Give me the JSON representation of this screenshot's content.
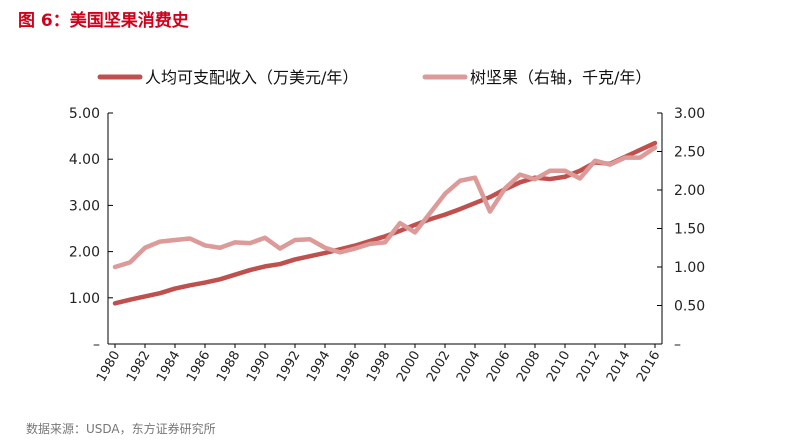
{
  "title": "图 6：美国坚果消费史",
  "source": "数据来源：USDA，东方证券研究所",
  "chart_data": {
    "type": "line",
    "title": "图 6：美国坚果消费史",
    "x": [
      1980,
      1981,
      1982,
      1983,
      1984,
      1985,
      1986,
      1987,
      1988,
      1989,
      1990,
      1991,
      1992,
      1993,
      1994,
      1995,
      1996,
      1997,
      1998,
      1999,
      2000,
      2001,
      2002,
      2003,
      2004,
      2005,
      2006,
      2007,
      2008,
      2009,
      2010,
      2011,
      2012,
      2013,
      2014,
      2015,
      2016
    ],
    "x_ticks": [
      "1980",
      "1982",
      "1984",
      "1986",
      "1988",
      "1990",
      "1992",
      "1994",
      "1996",
      "1998",
      "2000",
      "2002",
      "2004",
      "2006",
      "2008",
      "2010",
      "2012",
      "2014",
      "2016"
    ],
    "left_ticks": [
      "",
      "1.00",
      "2.00",
      "3.00",
      "4.00",
      "5.00"
    ],
    "right_ticks": [
      "",
      "0.50",
      "1.00",
      "1.50",
      "2.00",
      "2.50",
      "3.00"
    ],
    "ylim_left": [
      0,
      5
    ],
    "ylim_right": [
      0,
      3
    ],
    "legend_position": "top",
    "series": [
      {
        "name": "人均可支配收入（万美元/年）",
        "axis": "left",
        "color": "#c0504d",
        "values": [
          0.88,
          0.96,
          1.03,
          1.1,
          1.2,
          1.27,
          1.33,
          1.4,
          1.5,
          1.6,
          1.68,
          1.73,
          1.83,
          1.9,
          1.97,
          2.05,
          2.13,
          2.23,
          2.33,
          2.45,
          2.58,
          2.7,
          2.8,
          2.92,
          3.05,
          3.18,
          3.35,
          3.5,
          3.6,
          3.57,
          3.62,
          3.75,
          3.93,
          3.9,
          4.05,
          4.2,
          4.35
        ]
      },
      {
        "name": "树坚果（右轴，千克/年）",
        "axis": "right",
        "color": "#dc9a98",
        "values": [
          1.0,
          1.06,
          1.25,
          1.33,
          1.35,
          1.37,
          1.28,
          1.25,
          1.32,
          1.31,
          1.38,
          1.24,
          1.35,
          1.36,
          1.25,
          1.19,
          1.24,
          1.3,
          1.32,
          1.57,
          1.45,
          1.7,
          1.95,
          2.12,
          2.16,
          1.72,
          2.02,
          2.2,
          2.14,
          2.25,
          2.25,
          2.15,
          2.38,
          2.33,
          2.42,
          2.42,
          2.55
        ]
      }
    ]
  }
}
